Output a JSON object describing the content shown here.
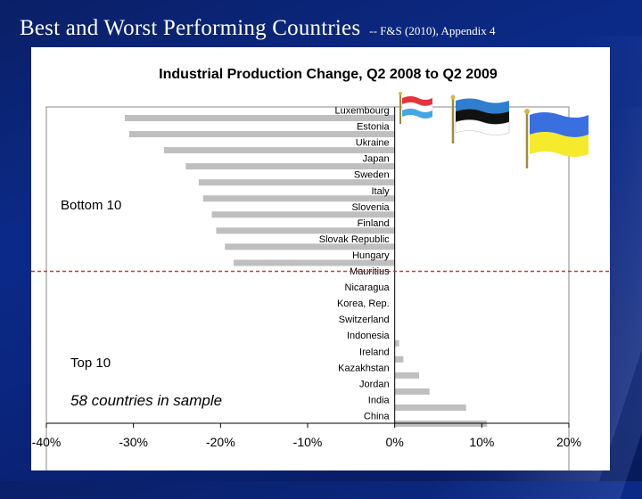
{
  "slide": {
    "title": "Best and Worst Performing Countries",
    "subtitle": "-- F&S (2010), Appendix 4"
  },
  "chart_data": {
    "type": "bar",
    "orientation": "horizontal",
    "title": "Industrial Production Change, Q2 2008 to Q2 2009",
    "xlabel": "",
    "ylabel": "",
    "xlim": [
      -0.4,
      0.2
    ],
    "x_ticks": [
      -0.4,
      -0.3,
      -0.2,
      -0.1,
      0.0,
      0.1,
      0.2
    ],
    "x_tick_labels": [
      "-40%",
      "-30%",
      "-20%",
      "-10%",
      "0%",
      "10%",
      "20%"
    ],
    "grid": false,
    "categories": [
      "Luxembourg",
      "Estonia",
      "Ukraine",
      "Japan",
      "Sweden",
      "Italy",
      "Slovenia",
      "Finland",
      "Slovak Republic",
      "Hungary",
      "Mauritius",
      "Nicaragua",
      "Korea, Rep.",
      "Switzerland",
      "Indonesia",
      "Ireland",
      "Kazakhstan",
      "Jordan",
      "India",
      "China"
    ],
    "values": [
      -0.31,
      -0.305,
      -0.265,
      -0.24,
      -0.225,
      -0.22,
      -0.21,
      -0.205,
      -0.195,
      -0.185,
      0.0,
      0.0,
      0.0,
      0.0,
      0.005,
      0.01,
      0.028,
      0.04,
      0.082,
      0.106
    ],
    "bar_color": "#bfbfbf",
    "divider_color": "#e03030",
    "annotations": {
      "bottom": "Bottom 10",
      "top": "Top 10",
      "sample": "58 countries in sample"
    },
    "flags": [
      "luxembourg-flag-icon",
      "estonia-flag-icon",
      "ukraine-flag-icon"
    ]
  }
}
